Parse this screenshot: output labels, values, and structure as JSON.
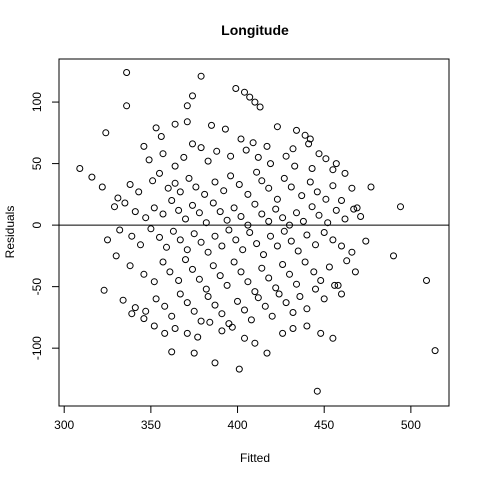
{
  "chart_data": {
    "type": "scatter",
    "title": "Longitude",
    "xlabel": "Fitted",
    "ylabel": "Residuals",
    "xlim": [
      297,
      522
    ],
    "ylim": [
      -147,
      135
    ],
    "x_ticks": [
      300,
      350,
      400,
      450,
      500
    ],
    "y_ticks": [
      -100,
      -50,
      0,
      50,
      100
    ],
    "reference_line_y": 0,
    "grid": false,
    "legend": "none",
    "marker": "open-circle",
    "color": "#000000",
    "points": [
      [
        336,
        124
      ],
      [
        379,
        121
      ],
      [
        399,
        111
      ],
      [
        404,
        108
      ],
      [
        407,
        104
      ],
      [
        374,
        105
      ],
      [
        371,
        97
      ],
      [
        410,
        100
      ],
      [
        413,
        96
      ],
      [
        336,
        97
      ],
      [
        353,
        79
      ],
      [
        364,
        82
      ],
      [
        371,
        84
      ],
      [
        385,
        81
      ],
      [
        393,
        78
      ],
      [
        423,
        80
      ],
      [
        434,
        77
      ],
      [
        439,
        73
      ],
      [
        442,
        70
      ],
      [
        324,
        75
      ],
      [
        356,
        72
      ],
      [
        374,
        66
      ],
      [
        379,
        63
      ],
      [
        388,
        60
      ],
      [
        402,
        70
      ],
      [
        409,
        67
      ],
      [
        417,
        64
      ],
      [
        432,
        62
      ],
      [
        441,
        66
      ],
      [
        447,
        58
      ],
      [
        451,
        54
      ],
      [
        457,
        50
      ],
      [
        346,
        64
      ],
      [
        349,
        53
      ],
      [
        357,
        58
      ],
      [
        364,
        48
      ],
      [
        369,
        55
      ],
      [
        383,
        52
      ],
      [
        396,
        56
      ],
      [
        405,
        61
      ],
      [
        412,
        55
      ],
      [
        419,
        50
      ],
      [
        428,
        56
      ],
      [
        433,
        48
      ],
      [
        443,
        46
      ],
      [
        455,
        45
      ],
      [
        462,
        42
      ],
      [
        466,
        30
      ],
      [
        309,
        46
      ],
      [
        316,
        39
      ],
      [
        322,
        31
      ],
      [
        331,
        22
      ],
      [
        338,
        33
      ],
      [
        343,
        27
      ],
      [
        351,
        36
      ],
      [
        355,
        42
      ],
      [
        360,
        30
      ],
      [
        364,
        34
      ],
      [
        367,
        27
      ],
      [
        372,
        38
      ],
      [
        376,
        31
      ],
      [
        381,
        25
      ],
      [
        387,
        35
      ],
      [
        392,
        28
      ],
      [
        396,
        40
      ],
      [
        401,
        33
      ],
      [
        406,
        25
      ],
      [
        411,
        43
      ],
      [
        414,
        36
      ],
      [
        418,
        30
      ],
      [
        423,
        21
      ],
      [
        427,
        38
      ],
      [
        431,
        31
      ],
      [
        437,
        24
      ],
      [
        442,
        35
      ],
      [
        446,
        27
      ],
      [
        451,
        21
      ],
      [
        455,
        32
      ],
      [
        460,
        20
      ],
      [
        467,
        13
      ],
      [
        471,
        7
      ],
      [
        477,
        31
      ],
      [
        494,
        15
      ],
      [
        329,
        15
      ],
      [
        335,
        18
      ],
      [
        341,
        11
      ],
      [
        347,
        6
      ],
      [
        352,
        14
      ],
      [
        357,
        9
      ],
      [
        362,
        20
      ],
      [
        366,
        12
      ],
      [
        370,
        5
      ],
      [
        374,
        16
      ],
      [
        378,
        10
      ],
      [
        382,
        2
      ],
      [
        386,
        18
      ],
      [
        390,
        11
      ],
      [
        394,
        4
      ],
      [
        398,
        14
      ],
      [
        402,
        7
      ],
      [
        406,
        0
      ],
      [
        410,
        17
      ],
      [
        414,
        9
      ],
      [
        418,
        3
      ],
      [
        422,
        13
      ],
      [
        426,
        6
      ],
      [
        430,
        0
      ],
      [
        434,
        10
      ],
      [
        438,
        3
      ],
      [
        443,
        15
      ],
      [
        447,
        8
      ],
      [
        452,
        2
      ],
      [
        457,
        12
      ],
      [
        462,
        5
      ],
      [
        469,
        14
      ],
      [
        325,
        -12
      ],
      [
        332,
        -4
      ],
      [
        339,
        -9
      ],
      [
        344,
        -16
      ],
      [
        350,
        -3
      ],
      [
        355,
        -10
      ],
      [
        359,
        -18
      ],
      [
        363,
        -5
      ],
      [
        367,
        -12
      ],
      [
        371,
        -20
      ],
      [
        375,
        -7
      ],
      [
        379,
        -14
      ],
      [
        383,
        -22
      ],
      [
        387,
        -9
      ],
      [
        391,
        -17
      ],
      [
        395,
        -4
      ],
      [
        399,
        -12
      ],
      [
        403,
        -20
      ],
      [
        407,
        -6
      ],
      [
        411,
        -15
      ],
      [
        415,
        -24
      ],
      [
        419,
        -9
      ],
      [
        423,
        -17
      ],
      [
        427,
        -5
      ],
      [
        431,
        -13
      ],
      [
        435,
        -21
      ],
      [
        440,
        -8
      ],
      [
        445,
        -16
      ],
      [
        450,
        -6
      ],
      [
        455,
        -12
      ],
      [
        460,
        -17
      ],
      [
        466,
        -22
      ],
      [
        474,
        -13
      ],
      [
        490,
        -25
      ],
      [
        330,
        -25
      ],
      [
        338,
        -33
      ],
      [
        346,
        -40
      ],
      [
        352,
        -46
      ],
      [
        357,
        -30
      ],
      [
        361,
        -38
      ],
      [
        366,
        -45
      ],
      [
        370,
        -28
      ],
      [
        374,
        -36
      ],
      [
        378,
        -44
      ],
      [
        382,
        -52
      ],
      [
        386,
        -33
      ],
      [
        390,
        -41
      ],
      [
        394,
        -49
      ],
      [
        398,
        -30
      ],
      [
        402,
        -38
      ],
      [
        406,
        -46
      ],
      [
        410,
        -54
      ],
      [
        414,
        -35
      ],
      [
        418,
        -43
      ],
      [
        422,
        -51
      ],
      [
        426,
        -32
      ],
      [
        430,
        -40
      ],
      [
        434,
        -48
      ],
      [
        439,
        -30
      ],
      [
        444,
        -38
      ],
      [
        448,
        -45
      ],
      [
        453,
        -34
      ],
      [
        458,
        -49
      ],
      [
        463,
        -29
      ],
      [
        468,
        -38
      ],
      [
        323,
        -53
      ],
      [
        334,
        -61
      ],
      [
        341,
        -67
      ],
      [
        347,
        -70
      ],
      [
        353,
        -60
      ],
      [
        358,
        -66
      ],
      [
        362,
        -74
      ],
      [
        367,
        -56
      ],
      [
        371,
        -63
      ],
      [
        375,
        -70
      ],
      [
        379,
        -78
      ],
      [
        383,
        -58
      ],
      [
        387,
        -65
      ],
      [
        391,
        -72
      ],
      [
        395,
        -80
      ],
      [
        400,
        -62
      ],
      [
        404,
        -69
      ],
      [
        408,
        -77
      ],
      [
        412,
        -59
      ],
      [
        416,
        -66
      ],
      [
        420,
        -74
      ],
      [
        424,
        -56
      ],
      [
        428,
        -63
      ],
      [
        432,
        -71
      ],
      [
        436,
        -58
      ],
      [
        440,
        -68
      ],
      [
        445,
        -52
      ],
      [
        450,
        -60
      ],
      [
        456,
        -49
      ],
      [
        460,
        -56
      ],
      [
        339,
        -72
      ],
      [
        346,
        -76
      ],
      [
        352,
        -82
      ],
      [
        358,
        -88
      ],
      [
        364,
        -84
      ],
      [
        371,
        -88
      ],
      [
        377,
        -91
      ],
      [
        384,
        -79
      ],
      [
        391,
        -86
      ],
      [
        397,
        -83
      ],
      [
        404,
        -92
      ],
      [
        410,
        -96
      ],
      [
        417,
        -104
      ],
      [
        426,
        -88
      ],
      [
        432,
        -84
      ],
      [
        440,
        -82
      ],
      [
        448,
        -88
      ],
      [
        455,
        -92
      ],
      [
        362,
        -103
      ],
      [
        375,
        -104
      ],
      [
        387,
        -112
      ],
      [
        401,
        -117
      ],
      [
        446,
        -135
      ],
      [
        509,
        -45
      ],
      [
        514,
        -102
      ]
    ]
  }
}
